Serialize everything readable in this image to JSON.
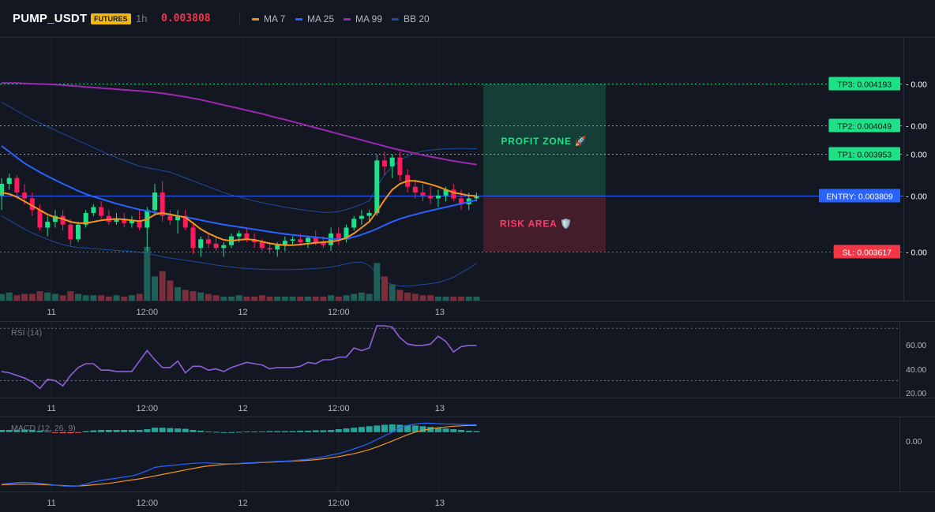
{
  "header": {
    "symbol": "PUMP_USDT",
    "badge": "FUTURES",
    "timeframe": "1h",
    "price": "0.003808",
    "legend": [
      {
        "label": "MA 7",
        "color": "#f7931a"
      },
      {
        "label": "MA 25",
        "color": "#2962ff"
      },
      {
        "label": "MA 99",
        "color": "#9c27b0"
      },
      {
        "label": "BB 20",
        "color": "#1e4b9c"
      }
    ]
  },
  "colors": {
    "up": "#26a69a",
    "upBright": "#1ee087",
    "down": "#f23645",
    "downBright": "#ff1a5e"
  },
  "x_axis_labels": [
    "11",
    "12:00",
    "12",
    "12:00",
    "13"
  ],
  "zones": {
    "profit_label": "PROFIT ZONE 🚀",
    "risk_label": "RISK AREA 🛡️"
  },
  "levels": [
    {
      "label": "TP3: 0.004193",
      "value": 0.004193,
      "color": "#1ee087",
      "type": "tp"
    },
    {
      "label": "TP2: 0.004049",
      "value": 0.004049,
      "color": "#1ee087",
      "type": "tp"
    },
    {
      "label": "TP1: 0.003953",
      "value": 0.003953,
      "color": "#1ee087",
      "type": "tp"
    },
    {
      "label": "ENTRY: 0.003809",
      "value": 0.003809,
      "color": "#2962ff",
      "type": "entry"
    },
    {
      "label": "SL: 0.003617",
      "value": 0.003617,
      "color": "#f23645",
      "type": "sl"
    }
  ],
  "level_suffix": "- 0.00",
  "rsi": {
    "title": "RSI (14)",
    "ticks": [
      "60.00",
      "40.00",
      "20.00"
    ]
  },
  "macd": {
    "title": "MACD (12, 26, 9)",
    "tick": "0.00"
  },
  "chart_data": [
    {
      "type": "candlestick",
      "title": "PUMP_USDT",
      "x_ticks": [
        "11",
        "12:00",
        "12",
        "12:00",
        "13"
      ],
      "y_range": [
        0.00345,
        0.00435
      ],
      "candles": [
        [
          0.00381,
          0.00387,
          0.00376,
          0.00385
        ],
        [
          0.00385,
          0.003885,
          0.00383,
          0.00387
        ],
        [
          0.00387,
          0.00388,
          0.0038,
          0.00382
        ],
        [
          0.00382,
          0.00385,
          0.00378,
          0.0038
        ],
        [
          0.0038,
          0.00382,
          0.00374,
          0.00376
        ],
        [
          0.00376,
          0.00378,
          0.00369,
          0.0037
        ],
        [
          0.0037,
          0.00374,
          0.00367,
          0.00372
        ],
        [
          0.00372,
          0.00376,
          0.0037,
          0.00374
        ],
        [
          0.00374,
          0.00376,
          0.00369,
          0.00371
        ],
        [
          0.00371,
          0.00373,
          0.00364,
          0.00366
        ],
        [
          0.00366,
          0.00372,
          0.00365,
          0.00371
        ],
        [
          0.00371,
          0.00376,
          0.0037,
          0.00375
        ],
        [
          0.00375,
          0.00378,
          0.00374,
          0.00377
        ],
        [
          0.00377,
          0.00379,
          0.00373,
          0.00374
        ],
        [
          0.00374,
          0.00376,
          0.00371,
          0.00372
        ],
        [
          0.00372,
          0.00375,
          0.00371,
          0.00373
        ],
        [
          0.00373,
          0.00375,
          0.0037,
          0.003715
        ],
        [
          0.003715,
          0.00374,
          0.0037,
          0.003725
        ],
        [
          0.003725,
          0.00376,
          0.00369,
          0.0037
        ],
        [
          0.0037,
          0.00377,
          0.00362,
          0.00376
        ],
        [
          0.00376,
          0.00385,
          0.00374,
          0.00382
        ],
        [
          0.00382,
          0.00386,
          0.00372,
          0.00374
        ],
        [
          0.00374,
          0.00376,
          0.00371,
          0.003725
        ],
        [
          0.003725,
          0.00376,
          0.00368,
          0.00374
        ],
        [
          0.00374,
          0.00376,
          0.00369,
          0.0037
        ],
        [
          0.0037,
          0.00372,
          0.00361,
          0.00363
        ],
        [
          0.00363,
          0.00367,
          0.0036,
          0.00366
        ],
        [
          0.00366,
          0.00368,
          0.00363,
          0.003645
        ],
        [
          0.003645,
          0.00367,
          0.00362,
          0.00363
        ],
        [
          0.00363,
          0.00365,
          0.0036,
          0.00364
        ],
        [
          0.00364,
          0.00368,
          0.00363,
          0.00367
        ],
        [
          0.00367,
          0.00369,
          0.00365,
          0.00368
        ],
        [
          0.00368,
          0.0037,
          0.00365,
          0.00366
        ],
        [
          0.00366,
          0.00368,
          0.00363,
          0.00365
        ],
        [
          0.00365,
          0.00366,
          0.00362,
          0.00363
        ],
        [
          0.00363,
          0.00365,
          0.00361,
          0.003625
        ],
        [
          0.003625,
          0.00365,
          0.0036,
          0.00364
        ],
        [
          0.00364,
          0.00367,
          0.00362,
          0.003655
        ],
        [
          0.003655,
          0.00367,
          0.00364,
          0.00366
        ],
        [
          0.00366,
          0.00368,
          0.00364,
          0.00365
        ],
        [
          0.00365,
          0.00367,
          0.00363,
          0.003665
        ],
        [
          0.003665,
          0.00369,
          0.00364,
          0.00365
        ],
        [
          0.00365,
          0.00367,
          0.00363,
          0.00364
        ],
        [
          0.00364,
          0.0037,
          0.00362,
          0.00368
        ],
        [
          0.00368,
          0.0037,
          0.00364,
          0.00366
        ],
        [
          0.00366,
          0.00371,
          0.00365,
          0.0037
        ],
        [
          0.0037,
          0.00374,
          0.00369,
          0.00373
        ],
        [
          0.00373,
          0.00376,
          0.00371,
          0.00374
        ],
        [
          0.00374,
          0.00376,
          0.00372,
          0.00375
        ],
        [
          0.00375,
          0.00395,
          0.00374,
          0.00393
        ],
        [
          0.00393,
          0.00396,
          0.00388,
          0.00391
        ],
        [
          0.00391,
          0.00395,
          0.00387,
          0.00394
        ],
        [
          0.00394,
          0.00396,
          0.00386,
          0.00388
        ],
        [
          0.00388,
          0.0039,
          0.00382,
          0.00384
        ],
        [
          0.00384,
          0.00386,
          0.0038,
          0.00382
        ],
        [
          0.00382,
          0.00385,
          0.00379,
          0.00381
        ],
        [
          0.00381,
          0.00384,
          0.00378,
          0.0038
        ],
        [
          0.0038,
          0.00383,
          0.00377,
          0.00381
        ],
        [
          0.00381,
          0.00384,
          0.00379,
          0.00383
        ],
        [
          0.00383,
          0.00385,
          0.00379,
          0.0038
        ],
        [
          0.0038,
          0.00383,
          0.00376,
          0.00378
        ],
        [
          0.00378,
          0.00382,
          0.00376,
          0.0038
        ],
        [
          0.0038,
          0.00382,
          0.00379,
          0.003808
        ]
      ],
      "volume": [
        5,
        6,
        4,
        5,
        5,
        7,
        6,
        5,
        4,
        7,
        5,
        4,
        4,
        4,
        3,
        4,
        3,
        4,
        5,
        40,
        18,
        22,
        15,
        10,
        8,
        7,
        6,
        5,
        4,
        3,
        3,
        4,
        3,
        3,
        4,
        3,
        3,
        3,
        3,
        3,
        3,
        3,
        3,
        4,
        3,
        4,
        5,
        6,
        5,
        28,
        18,
        12,
        8,
        6,
        5,
        4,
        4,
        3,
        3,
        3,
        3,
        3,
        3
      ],
      "ma7": [
        0.00382,
        0.003815,
        0.003805,
        0.00379,
        0.003775,
        0.00376,
        0.003745,
        0.003735,
        0.00373,
        0.00372,
        0.003715,
        0.003715,
        0.00372,
        0.003725,
        0.003728,
        0.00373,
        0.003728,
        0.003725,
        0.003722,
        0.003728,
        0.003745,
        0.00375,
        0.003745,
        0.00374,
        0.003735,
        0.003715,
        0.003695,
        0.00368,
        0.003668,
        0.003658,
        0.003655,
        0.003658,
        0.00366,
        0.003658,
        0.003652,
        0.003646,
        0.003642,
        0.00364,
        0.00364,
        0.003642,
        0.003645,
        0.003648,
        0.00365,
        0.003652,
        0.003656,
        0.003665,
        0.00368,
        0.0037,
        0.00372,
        0.003755,
        0.003795,
        0.00383,
        0.00385,
        0.00386,
        0.00386,
        0.003855,
        0.003848,
        0.00384,
        0.00383,
        0.00382,
        0.003815,
        0.00381,
        0.003808
      ],
      "ma25": [
        0.00398,
        0.00396,
        0.00394,
        0.00392,
        0.003905,
        0.00389,
        0.003876,
        0.003863,
        0.00385,
        0.003838,
        0.003826,
        0.003815,
        0.003806,
        0.003798,
        0.00379,
        0.003782,
        0.003775,
        0.003768,
        0.003762,
        0.003757,
        0.003752,
        0.003748,
        0.003744,
        0.00374,
        0.003736,
        0.003731,
        0.003726,
        0.00372,
        0.003715,
        0.00371,
        0.003706,
        0.003702,
        0.003698,
        0.003694,
        0.00369,
        0.003686,
        0.003682,
        0.003678,
        0.003675,
        0.003672,
        0.00367,
        0.003667,
        0.003664,
        0.003662,
        0.00366,
        0.003662,
        0.003668,
        0.003676,
        0.003685,
        0.003696,
        0.003708,
        0.00372,
        0.00373,
        0.003738,
        0.003745,
        0.003752,
        0.003758,
        0.003764,
        0.00377,
        0.003776,
        0.003782,
        0.003788,
        0.003794
      ],
      "ma99": [
        0.004195,
        0.004195,
        0.004195,
        0.004194,
        0.004193,
        0.004192,
        0.004191,
        0.00419,
        0.004188,
        0.004186,
        0.004184,
        0.004182,
        0.00418,
        0.004178,
        0.004176,
        0.004174,
        0.004172,
        0.00417,
        0.004168,
        0.004166,
        0.004163,
        0.00416,
        0.004156,
        0.004152,
        0.004148,
        0.004143,
        0.004138,
        0.004132,
        0.004126,
        0.00412,
        0.004114,
        0.004108,
        0.004102,
        0.004096,
        0.00409,
        0.004083,
        0.004076,
        0.00407,
        0.004063,
        0.004056,
        0.004049,
        0.004042,
        0.004035,
        0.004028,
        0.004021,
        0.004014,
        0.004007,
        0.004,
        0.003993,
        0.003986,
        0.003979,
        0.003972,
        0.003966,
        0.00396,
        0.003954,
        0.003948,
        0.003943,
        0.003938,
        0.003933,
        0.003928,
        0.003924,
        0.00392,
        0.003916
      ],
      "bb_upper": [
        0.00413,
        0.004115,
        0.0041,
        0.004085,
        0.00407,
        0.004058,
        0.004046,
        0.004034,
        0.004022,
        0.00401,
        0.003998,
        0.003986,
        0.003974,
        0.003962,
        0.00395,
        0.00394,
        0.00393,
        0.00392,
        0.00391,
        0.003905,
        0.0039,
        0.003895,
        0.00389,
        0.00388,
        0.00387,
        0.00386,
        0.00385,
        0.00384,
        0.00383,
        0.00382,
        0.003812,
        0.003805,
        0.003798,
        0.003791,
        0.003785,
        0.00378,
        0.003775,
        0.00377,
        0.003766,
        0.003762,
        0.003758,
        0.003755,
        0.003752,
        0.003752,
        0.003755,
        0.003762,
        0.00377,
        0.00378,
        0.003792,
        0.00384,
        0.00388,
        0.00391,
        0.00393,
        0.003945,
        0.003955,
        0.003962,
        0.003966,
        0.003968,
        0.00397,
        0.003971,
        0.003971,
        0.003971,
        0.00397
      ],
      "bb_lower": [
        0.00374,
        0.003725,
        0.00371,
        0.003695,
        0.003682,
        0.00367,
        0.00366,
        0.00365,
        0.003642,
        0.003636,
        0.003632,
        0.00363,
        0.003628,
        0.003626,
        0.003624,
        0.003622,
        0.00362,
        0.003618,
        0.003616,
        0.003612,
        0.003606,
        0.0036,
        0.003596,
        0.003592,
        0.003588,
        0.003584,
        0.00358,
        0.003576,
        0.003572,
        0.003568,
        0.003565,
        0.003562,
        0.00356,
        0.003558,
        0.003557,
        0.003556,
        0.003556,
        0.003556,
        0.003556,
        0.003557,
        0.003558,
        0.00356,
        0.003562,
        0.003565,
        0.00357,
        0.003576,
        0.00358,
        0.003582,
        0.00357,
        0.00354,
        0.003515,
        0.003505,
        0.0035,
        0.0035,
        0.003502,
        0.003505,
        0.003508,
        0.003512,
        0.00352,
        0.00353,
        0.003545,
        0.00356,
        0.003578
      ]
    },
    {
      "type": "line",
      "title": "RSI (14)",
      "y_range": [
        17,
        75
      ],
      "guides": [
        70,
        30
      ],
      "values": [
        37,
        36,
        34,
        32,
        29,
        24,
        31,
        30,
        26,
        34,
        40,
        43,
        43,
        38,
        38,
        37,
        37,
        37,
        45,
        53,
        46,
        40,
        40,
        45,
        36,
        41,
        41,
        38,
        39,
        37,
        40,
        42,
        44,
        43,
        42,
        39,
        40,
        40,
        40,
        41,
        44,
        43,
        46,
        46,
        48,
        48,
        55,
        53,
        55,
        72,
        72,
        71,
        63,
        58,
        57,
        57,
        58,
        64,
        60,
        52,
        56,
        57,
        57
      ]
    },
    {
      "type": "bar",
      "title": "MACD (12, 26, 9)",
      "y_range": [
        -0.00016,
        4e-05
      ],
      "histogram": [
        6e-06,
        6e-06,
        6e-06,
        7e-06,
        6e-06,
        4e-06,
        2e-06,
        -2e-06,
        -3e-06,
        -3e-06,
        -2e-06,
        3e-06,
        5e-06,
        6e-06,
        6e-06,
        6e-06,
        6e-06,
        6e-06,
        6e-06,
        8e-06,
        1.2e-05,
        1.2e-05,
        1.1e-05,
        1e-05,
        9e-06,
        6e-06,
        4e-06,
        2e-06,
        1e-06,
        0.0,
        0.0,
        1e-06,
        2e-06,
        2e-06,
        2e-06,
        3e-06,
        3e-06,
        3e-06,
        3e-06,
        4e-06,
        4e-06,
        5e-06,
        5e-06,
        6e-06,
        8e-06,
        1e-05,
        1.2e-05,
        1.4e-05,
        1.6e-05,
        1.8e-05,
        2e-05,
        2.1e-05,
        2e-05,
        1.9e-05,
        1.8e-05,
        1.6e-05,
        1.4e-05,
        1.2e-05,
        1e-05,
        8e-06,
        6e-06,
        4e-06,
        3e-06
      ],
      "macd": [
        -0.00014,
        -0.000138,
        -0.000136,
        -0.000135,
        -0.000136,
        -0.000138,
        -0.00014,
        -0.000143,
        -0.000145,
        -0.000146,
        -0.000145,
        -0.00014,
        -0.000134,
        -0.00013,
        -0.000127,
        -0.000124,
        -0.000121,
        -0.000118,
        -0.000112,
        -0.000104,
        -9.5e-05,
        -9.2e-05,
        -9e-05,
        -8.8e-05,
        -8.6e-05,
        -8.4e-05,
        -8.3e-05,
        -8.3e-05,
        -8.4e-05,
        -8.5e-05,
        -8.5e-05,
        -8.4e-05,
        -8.3e-05,
        -8.2e-05,
        -8.1e-05,
        -8e-05,
        -7.9e-05,
        -7.8e-05,
        -7.7e-05,
        -7.5e-05,
        -7.3e-05,
        -7e-05,
        -6.6e-05,
        -6.2e-05,
        -5.8e-05,
        -5.2e-05,
        -4.5e-05,
        -3.8e-05,
        -3e-05,
        -2e-05,
        -1e-05,
        0.0,
        1.2e-05,
        1.8e-05,
        2.2e-05,
        2.4e-05,
        2.4e-05,
        2.3e-05,
        2.2e-05,
        2.2e-05,
        2.1e-05,
        2e-05,
        2e-05
      ],
      "signal": [
        -0.000142,
        -0.000141,
        -0.00014,
        -0.00014,
        -0.00014,
        -0.000141,
        -0.000142,
        -0.000143,
        -0.000144,
        -0.000145,
        -0.000145,
        -0.000144,
        -0.000142,
        -0.00014,
        -0.000138,
        -0.000135,
        -0.000132,
        -0.000129,
        -0.000126,
        -0.000122,
        -0.000118,
        -0.000114,
        -0.00011,
        -0.000106,
        -0.000102,
        -9.8e-05,
        -9.4e-05,
        -9.1e-05,
        -8.9e-05,
        -8.7e-05,
        -8.6e-05,
        -8.5e-05,
        -8.4e-05,
        -8.3e-05,
        -8.2e-05,
        -8.1e-05,
        -8e-05,
        -7.9e-05,
        -7.8e-05,
        -7.7e-05,
        -7.6e-05,
        -7.4e-05,
        -7.2e-05,
        -6.9e-05,
        -6.6e-05,
        -6.2e-05,
        -5.8e-05,
        -5.3e-05,
        -4.7e-05,
        -4e-05,
        -3.2e-05,
        -2.4e-05,
        -1.5e-05,
        -7e-06,
        0.0,
        5e-06,
        9e-06,
        1.2e-05,
        1.4e-05,
        1.6e-05,
        1.7e-05,
        1.8e-05,
        1.8e-05
      ]
    }
  ]
}
